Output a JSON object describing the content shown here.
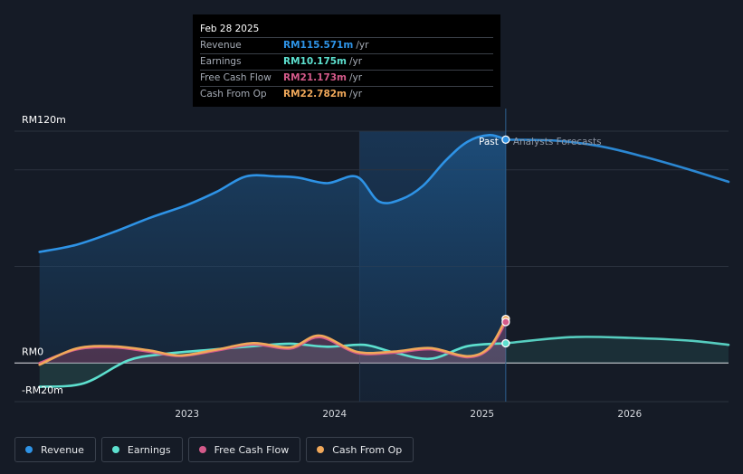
{
  "tooltip": {
    "date": "Feb 28 2025",
    "rows": [
      {
        "name": "Revenue",
        "value": "RM115.571m",
        "unit": "/yr",
        "color": "#2e93e6"
      },
      {
        "name": "Earnings",
        "value": "RM10.175m",
        "unit": "/yr",
        "color": "#5de0cf"
      },
      {
        "name": "Free Cash Flow",
        "value": "RM21.173m",
        "unit": "/yr",
        "color": "#d45a8a"
      },
      {
        "name": "Cash From Op",
        "value": "RM22.782m",
        "unit": "/yr",
        "color": "#f0a85a"
      }
    ]
  },
  "chart_data": {
    "type": "line",
    "ylim": [
      -20,
      120
    ],
    "y_tick_labels": [
      {
        "value": 120,
        "label": "RM120m"
      },
      {
        "value": 0,
        "label": "RM0"
      },
      {
        "value": -20,
        "label": "-RM20m"
      }
    ],
    "x_tick_labels": [
      {
        "value": 2023,
        "label": "2023"
      },
      {
        "value": 2024,
        "label": "2024"
      },
      {
        "value": 2025,
        "label": "2025"
      },
      {
        "value": 2026,
        "label": "2026"
      }
    ],
    "xlim": [
      2021.83,
      2026.67
    ],
    "divider_x": 2025.16,
    "past_label": "Past",
    "forecast_label": "Analysts Forecasts",
    "series": [
      {
        "name": "Revenue",
        "color": "#2e93e6",
        "fill": true,
        "x": [
          2022.0,
          2022.25,
          2022.5,
          2022.75,
          2023.0,
          2023.2,
          2023.4,
          2023.6,
          2023.75,
          2023.95,
          2024.15,
          2024.3,
          2024.45,
          2024.6,
          2024.75,
          2024.9,
          2025.05,
          2025.16
        ],
        "values": [
          57.5,
          61.2,
          67.7,
          75.2,
          81.8,
          88.6,
          96.6,
          96.6,
          96.0,
          93.1,
          96.4,
          83.6,
          84.7,
          91.8,
          104.6,
          114.5,
          118.0,
          115.6
        ]
      },
      {
        "name": "Revenue forecast",
        "color": "#2e93e6",
        "fill": false,
        "forecast": true,
        "x": [
          2025.16,
          2025.5,
          2025.8,
          2026.1,
          2026.4,
          2026.67
        ],
        "values": [
          115.6,
          115.1,
          112.2,
          106.7,
          100.2,
          93.8
        ]
      },
      {
        "name": "Earnings",
        "color": "#5de0cf",
        "fill": true,
        "x": [
          2022.0,
          2022.3,
          2022.6,
          2022.85,
          2023.15,
          2023.45,
          2023.7,
          2023.95,
          2024.2,
          2024.4,
          2024.65,
          2024.9,
          2025.16
        ],
        "values": [
          -12.3,
          -10.5,
          1.3,
          4.7,
          6.8,
          8.7,
          10.0,
          8.4,
          9.4,
          5.5,
          2.2,
          8.7,
          10.2
        ]
      },
      {
        "name": "Earnings forecast",
        "color": "#5de0cf",
        "fill": false,
        "forecast": true,
        "x": [
          2025.16,
          2025.6,
          2026.0,
          2026.4,
          2026.67
        ],
        "values": [
          10.2,
          13.4,
          13.0,
          11.6,
          9.4
        ]
      },
      {
        "name": "Free Cash Flow",
        "color": "#d45a8a",
        "fill": true,
        "x": [
          2022.0,
          2022.25,
          2022.5,
          2022.75,
          2022.95,
          2023.2,
          2023.45,
          2023.7,
          2023.9,
          2024.15,
          2024.4,
          2024.65,
          2024.9,
          2025.05,
          2025.16
        ],
        "values": [
          0.0,
          7.0,
          8.1,
          5.8,
          3.6,
          6.4,
          9.6,
          7.5,
          13.4,
          5.2,
          5.3,
          7.1,
          3.0,
          7.5,
          21.2
        ]
      },
      {
        "name": "Cash From Op",
        "color": "#f0a85a",
        "fill": false,
        "x": [
          2022.0,
          2022.25,
          2022.5,
          2022.75,
          2022.95,
          2023.2,
          2023.45,
          2023.7,
          2023.9,
          2024.15,
          2024.4,
          2024.65,
          2024.9,
          2025.05,
          2025.16
        ],
        "values": [
          -0.9,
          7.5,
          8.6,
          6.4,
          3.9,
          6.9,
          10.3,
          8.1,
          14.2,
          5.8,
          5.9,
          7.7,
          3.5,
          8.2,
          22.8
        ]
      }
    ],
    "highlight_points": [
      {
        "series": "Revenue",
        "x": 2025.16,
        "value": 115.6,
        "color": "#2e93e6"
      },
      {
        "series": "Cash From Op",
        "x": 2025.16,
        "value": 22.8,
        "color": "#f0a85a"
      },
      {
        "series": "Free Cash Flow",
        "x": 2025.16,
        "value": 21.2,
        "color": "#d45a8a"
      },
      {
        "series": "Earnings",
        "x": 2025.16,
        "value": 10.2,
        "color": "#5de0cf"
      }
    ]
  },
  "legend": [
    {
      "label": "Revenue",
      "color": "#2e93e6"
    },
    {
      "label": "Earnings",
      "color": "#5de0cf"
    },
    {
      "label": "Free Cash Flow",
      "color": "#d45a8a"
    },
    {
      "label": "Cash From Op",
      "color": "#f0a85a"
    }
  ]
}
